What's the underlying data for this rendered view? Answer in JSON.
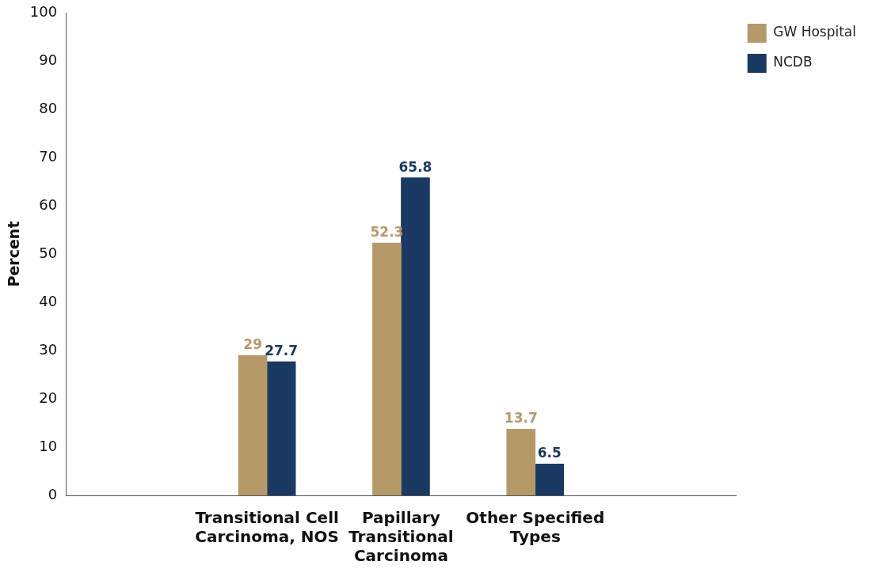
{
  "chart_data": {
    "type": "bar",
    "ylabel": "Percent",
    "categories": [
      null,
      "Transitional Cell Carcinoma, NOS",
      "Papillary Transitional Carcinoma",
      "Other Specified Types",
      null
    ],
    "series": [
      {
        "name": "GW Hospital",
        "color": "#b59a68",
        "values": [
          null,
          29,
          52.3,
          13.7,
          null
        ]
      },
      {
        "name": "NCDB",
        "color": "#1a3a63",
        "values": [
          null,
          27.7,
          65.8,
          6.5,
          null
        ]
      }
    ],
    "ylim": [
      0,
      100
    ],
    "yticks": [
      0,
      10,
      20,
      30,
      40,
      50,
      60,
      70,
      80,
      90,
      100
    ],
    "grid": false,
    "legend": "top right",
    "data_labels": true
  }
}
